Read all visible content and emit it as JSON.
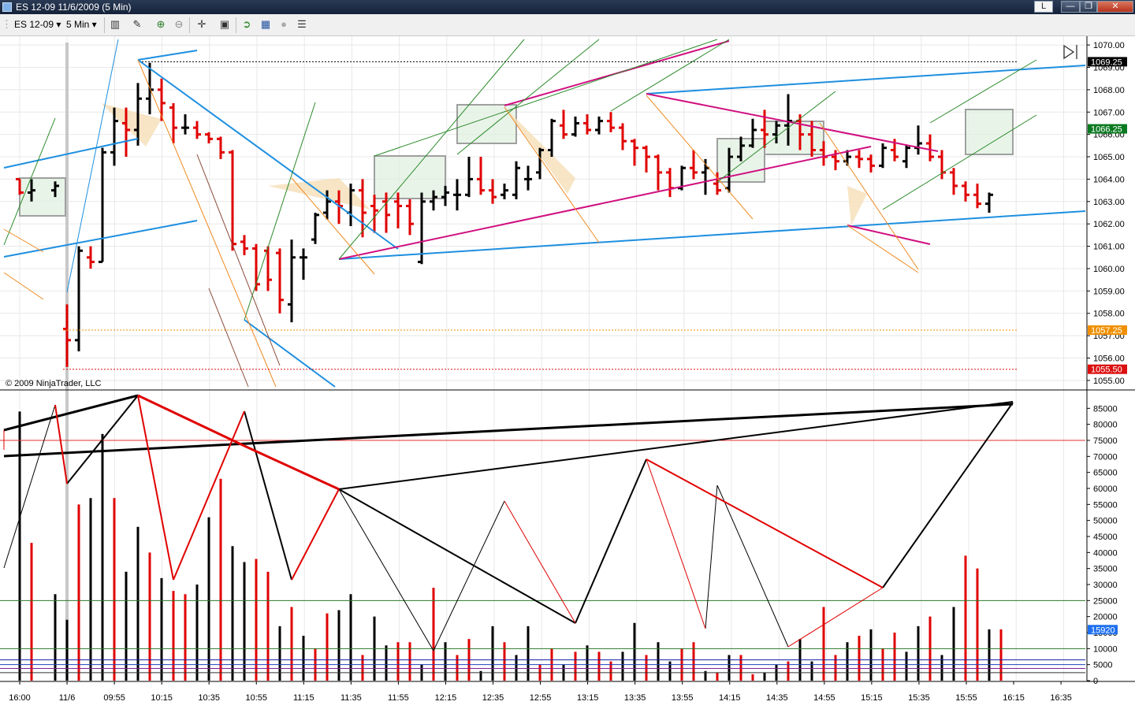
{
  "window": {
    "title": "ES 12-09  11/6/2009 (5 Min)",
    "language_indicator": "L",
    "minimize_glyph": "—",
    "restore_glyph": "❐",
    "close_glyph": "✕"
  },
  "toolbar": {
    "instrument": "ES 12-09",
    "interval": "5 Min",
    "icons": [
      "bars-type-icon",
      "pencil-draw-icon",
      "zoom-in-icon",
      "zoom-out-icon",
      "crosshair-icon",
      "properties-icon",
      "strategy-icon",
      "indicator-icon",
      "sound-icon",
      "data-box-icon"
    ]
  },
  "colors": {
    "up_bar": "#000000",
    "down_bar": "#e00000",
    "pivot_line": "#d01080",
    "trend_blue": "#1e8fe0",
    "channel_green": "#2a8a2a",
    "channel_orange": "#f08a20",
    "grid": "#e8e8e8"
  },
  "copyright": "© 2009 NinjaTrader, LLC",
  "chart_data": [
    {
      "type": "bar",
      "panel": "price",
      "description_series": "OHLC 5-minute bars",
      "ylim": [
        1054.75,
        1070.25
      ],
      "yticks": [
        "1070.00",
        "1069.00",
        "1068.00",
        "1067.00",
        "1066.00",
        "1065.00",
        "1064.00",
        "1063.00",
        "1062.00",
        "1061.00",
        "1060.00",
        "1059.00",
        "1058.00",
        "1057.00",
        "1056.00",
        "1055.00"
      ],
      "markers": [
        {
          "label": "1069.25",
          "value": 1069.25,
          "color": "#000000"
        },
        {
          "label": "1066.25",
          "value": 1066.25,
          "color": "#0a7a20"
        },
        {
          "label": "1057.25",
          "value": 1057.25,
          "color": "#f09000"
        },
        {
          "label": "1055.50",
          "value": 1055.5,
          "color": "#dd1010"
        }
      ],
      "bars": [
        {
          "t": "15:55",
          "o": 1064.0,
          "h": 1064.0,
          "c": 1063.4,
          "l": 1063.3
        },
        {
          "t": "16:05",
          "o": 1063.4,
          "h": 1064.0,
          "c": 1063.5,
          "l": 1063.0
        },
        {
          "t": "16:10",
          "o": 1063.5,
          "h": 1063.9,
          "c": 1063.7,
          "l": 1063.2
        },
        {
          "t": "09:30",
          "o": 1057.3,
          "h": 1058.4,
          "c": 1056.8,
          "l": 1055.6
        },
        {
          "t": "09:35",
          "o": 1056.8,
          "h": 1061.0,
          "c": 1060.8,
          "l": 1056.3
        },
        {
          "t": "09:40",
          "o": 1060.5,
          "h": 1061.0,
          "c": 1060.3,
          "l": 1060.0
        },
        {
          "t": "09:45",
          "o": 1060.3,
          "h": 1065.4,
          "c": 1065.2,
          "l": 1060.3
        },
        {
          "t": "09:50",
          "o": 1065.2,
          "h": 1067.2,
          "c": 1066.6,
          "l": 1064.6
        },
        {
          "t": "09:55",
          "o": 1066.5,
          "h": 1067.2,
          "c": 1066.2,
          "l": 1065.0
        },
        {
          "t": "10:00",
          "o": 1066.2,
          "h": 1068.3,
          "c": 1067.6,
          "l": 1065.5
        },
        {
          "t": "10:05",
          "o": 1067.6,
          "h": 1069.2,
          "c": 1068.0,
          "l": 1066.9
        },
        {
          "t": "10:10",
          "o": 1068.0,
          "h": 1068.5,
          "c": 1067.4,
          "l": 1066.6
        },
        {
          "t": "10:15",
          "o": 1067.2,
          "h": 1067.4,
          "c": 1066.3,
          "l": 1065.6
        },
        {
          "t": "10:20",
          "o": 1066.3,
          "h": 1066.9,
          "c": 1066.3,
          "l": 1066.0
        },
        {
          "t": "10:25",
          "o": 1066.3,
          "h": 1066.6,
          "c": 1066.0,
          "l": 1065.8
        },
        {
          "t": "10:30",
          "o": 1066.0,
          "h": 1066.1,
          "c": 1065.8,
          "l": 1065.6
        },
        {
          "t": "10:35",
          "o": 1065.8,
          "h": 1065.9,
          "c": 1065.2,
          "l": 1064.9
        },
        {
          "t": "10:40",
          "o": 1065.2,
          "h": 1065.3,
          "c": 1061.1,
          "l": 1060.8
        },
        {
          "t": "10:45",
          "o": 1061.2,
          "h": 1061.5,
          "c": 1060.9,
          "l": 1060.6
        },
        {
          "t": "10:50",
          "o": 1060.9,
          "h": 1061.1,
          "c": 1059.3,
          "l": 1059.0
        },
        {
          "t": "10:55",
          "o": 1060.8,
          "h": 1061.0,
          "c": 1059.5,
          "l": 1059.0
        },
        {
          "t": "11:00",
          "o": 1060.7,
          "h": 1060.9,
          "c": 1058.6,
          "l": 1058.0
        },
        {
          "t": "11:05",
          "o": 1058.4,
          "h": 1061.3,
          "c": 1060.5,
          "l": 1057.6
        },
        {
          "t": "11:10",
          "o": 1060.5,
          "h": 1060.9,
          "c": 1060.5,
          "l": 1059.5
        },
        {
          "t": "11:15",
          "o": 1061.3,
          "h": 1062.5,
          "c": 1062.4,
          "l": 1061.1
        },
        {
          "t": "11:20",
          "o": 1062.5,
          "h": 1063.5,
          "c": 1063.0,
          "l": 1062.2
        },
        {
          "t": "11:25",
          "o": 1063.0,
          "h": 1063.5,
          "c": 1062.8,
          "l": 1062.0
        },
        {
          "t": "11:30",
          "o": 1062.5,
          "h": 1063.8,
          "c": 1063.5,
          "l": 1061.9
        },
        {
          "t": "11:35",
          "o": 1063.5,
          "h": 1064.0,
          "c": 1062.5,
          "l": 1061.4
        },
        {
          "t": "11:40",
          "o": 1062.8,
          "h": 1063.3,
          "c": 1062.6,
          "l": 1061.6
        },
        {
          "t": "11:45",
          "o": 1063.0,
          "h": 1063.4,
          "c": 1062.4,
          "l": 1061.6
        },
        {
          "t": "11:50",
          "o": 1063.0,
          "h": 1063.4,
          "c": 1062.8,
          "l": 1061.8
        },
        {
          "t": "11:55",
          "o": 1062.8,
          "h": 1063.1,
          "c": 1062.0,
          "l": 1061.5
        },
        {
          "t": "12:00",
          "o": 1060.3,
          "h": 1063.4,
          "c": 1063.0,
          "l": 1060.2
        },
        {
          "t": "12:05",
          "o": 1063.0,
          "h": 1063.5,
          "c": 1063.2,
          "l": 1062.6
        },
        {
          "t": "12:10",
          "o": 1063.2,
          "h": 1063.7,
          "c": 1063.4,
          "l": 1062.8
        },
        {
          "t": "12:15",
          "o": 1063.3,
          "h": 1064.0,
          "c": 1063.3,
          "l": 1062.6
        },
        {
          "t": "12:20",
          "o": 1063.3,
          "h": 1065.0,
          "c": 1064.0,
          "l": 1063.2
        },
        {
          "t": "12:25",
          "o": 1064.0,
          "h": 1065.0,
          "c": 1063.5,
          "l": 1063.3
        },
        {
          "t": "12:30",
          "o": 1063.5,
          "h": 1064.0,
          "c": 1063.2,
          "l": 1062.9
        },
        {
          "t": "12:35",
          "o": 1063.3,
          "h": 1063.8,
          "c": 1063.5,
          "l": 1063.1
        },
        {
          "t": "12:40",
          "o": 1063.3,
          "h": 1064.8,
          "c": 1064.5,
          "l": 1063.1
        },
        {
          "t": "12:45",
          "o": 1064.0,
          "h": 1064.6,
          "c": 1064.0,
          "l": 1063.5
        },
        {
          "t": "12:50",
          "o": 1064.3,
          "h": 1065.4,
          "c": 1065.3,
          "l": 1064.0
        },
        {
          "t": "12:55",
          "o": 1065.3,
          "h": 1066.7,
          "c": 1066.6,
          "l": 1065.0
        },
        {
          "t": "13:00",
          "o": 1066.4,
          "h": 1067.1,
          "c": 1066.0,
          "l": 1065.8
        },
        {
          "t": "13:05",
          "o": 1066.0,
          "h": 1066.8,
          "c": 1066.5,
          "l": 1065.9
        },
        {
          "t": "13:10",
          "o": 1066.5,
          "h": 1066.9,
          "c": 1066.2,
          "l": 1066.0
        },
        {
          "t": "13:15",
          "o": 1066.2,
          "h": 1066.8,
          "c": 1066.6,
          "l": 1066.0
        },
        {
          "t": "13:20",
          "o": 1066.6,
          "h": 1067.0,
          "c": 1066.3,
          "l": 1066.1
        },
        {
          "t": "13:25",
          "o": 1066.3,
          "h": 1066.5,
          "c": 1065.7,
          "l": 1065.3
        },
        {
          "t": "13:30",
          "o": 1065.7,
          "h": 1065.8,
          "c": 1065.4,
          "l": 1064.6
        },
        {
          "t": "13:35",
          "o": 1065.4,
          "h": 1065.5,
          "c": 1065.0,
          "l": 1064.3
        },
        {
          "t": "13:40",
          "o": 1065.0,
          "h": 1065.1,
          "c": 1064.3,
          "l": 1063.5
        },
        {
          "t": "13:45",
          "o": 1064.3,
          "h": 1064.5,
          "c": 1063.6,
          "l": 1063.2
        },
        {
          "t": "13:50",
          "o": 1063.6,
          "h": 1064.6,
          "c": 1064.5,
          "l": 1063.5
        },
        {
          "t": "13:55",
          "o": 1064.5,
          "h": 1065.3,
          "c": 1064.3,
          "l": 1064.0
        },
        {
          "t": "14:00",
          "o": 1064.3,
          "h": 1064.9,
          "c": 1064.5,
          "l": 1063.3
        },
        {
          "t": "14:05",
          "o": 1063.8,
          "h": 1064.3,
          "c": 1063.5,
          "l": 1063.3
        },
        {
          "t": "14:10",
          "o": 1063.6,
          "h": 1065.4,
          "c": 1065.0,
          "l": 1063.4
        },
        {
          "t": "14:15",
          "o": 1065.0,
          "h": 1065.9,
          "c": 1065.5,
          "l": 1064.8
        },
        {
          "t": "14:20",
          "o": 1065.5,
          "h": 1066.7,
          "c": 1066.2,
          "l": 1065.4
        },
        {
          "t": "14:25",
          "o": 1066.2,
          "h": 1067.1,
          "c": 1066.0,
          "l": 1065.4
        },
        {
          "t": "14:30",
          "o": 1066.0,
          "h": 1066.6,
          "c": 1066.4,
          "l": 1065.6
        },
        {
          "t": "14:35",
          "o": 1066.4,
          "h": 1067.8,
          "c": 1066.6,
          "l": 1065.5
        },
        {
          "t": "14:40",
          "o": 1066.6,
          "h": 1066.9,
          "c": 1066.0,
          "l": 1065.3
        },
        {
          "t": "14:45",
          "o": 1066.0,
          "h": 1066.6,
          "c": 1065.3,
          "l": 1065.0
        },
        {
          "t": "14:50",
          "o": 1065.3,
          "h": 1065.7,
          "c": 1065.0,
          "l": 1064.6
        },
        {
          "t": "14:55",
          "o": 1065.0,
          "h": 1065.3,
          "c": 1064.8,
          "l": 1064.4
        },
        {
          "t": "15:00",
          "o": 1064.8,
          "h": 1065.3,
          "c": 1065.0,
          "l": 1064.6
        },
        {
          "t": "15:05",
          "o": 1065.0,
          "h": 1065.3,
          "c": 1064.9,
          "l": 1064.5
        },
        {
          "t": "15:10",
          "o": 1064.9,
          "h": 1065.1,
          "c": 1064.6,
          "l": 1064.3
        },
        {
          "t": "15:15",
          "o": 1064.6,
          "h": 1065.6,
          "c": 1065.4,
          "l": 1064.5
        },
        {
          "t": "15:20",
          "o": 1065.3,
          "h": 1065.8,
          "c": 1065.0,
          "l": 1064.8
        },
        {
          "t": "15:25",
          "o": 1064.8,
          "h": 1065.5,
          "c": 1065.4,
          "l": 1064.5
        },
        {
          "t": "15:30",
          "o": 1065.4,
          "h": 1066.4,
          "c": 1065.6,
          "l": 1065.1
        },
        {
          "t": "15:35",
          "o": 1065.6,
          "h": 1066.0,
          "c": 1065.0,
          "l": 1064.8
        },
        {
          "t": "15:40",
          "o": 1065.0,
          "h": 1065.3,
          "c": 1064.3,
          "l": 1064.0
        },
        {
          "t": "15:45",
          "o": 1064.3,
          "h": 1064.5,
          "c": 1063.7,
          "l": 1063.3
        },
        {
          "t": "15:50",
          "o": 1063.7,
          "h": 1063.9,
          "c": 1063.3,
          "l": 1063.0
        },
        {
          "t": "15:55",
          "o": 1063.3,
          "h": 1063.8,
          "c": 1062.9,
          "l": 1062.7
        },
        {
          "t": "16:00",
          "o": 1062.9,
          "h": 1063.4,
          "c": 1063.3,
          "l": 1062.5
        }
      ]
    },
    {
      "type": "bar",
      "panel": "volume",
      "ylim": [
        0,
        90000
      ],
      "yticks": [
        "85000",
        "80000",
        "75000",
        "70000",
        "65000",
        "60000",
        "55000",
        "50000",
        "45000",
        "40000",
        "35000",
        "30000",
        "25000",
        "20000",
        "15000",
        "10000",
        "5000",
        "0"
      ],
      "last_value_label": "15920",
      "reference_lines": [
        75000,
        25000,
        10000
      ],
      "x_tick_labels": [
        "16:00",
        "11/6",
        "09:55",
        "10:15",
        "10:35",
        "10:55",
        "11:15",
        "11:35",
        "11:55",
        "12:15",
        "12:35",
        "12:55",
        "13:15",
        "13:35",
        "13:55",
        "14:15",
        "14:35",
        "14:55",
        "15:15",
        "15:35",
        "15:55",
        "16:15",
        "16:35"
      ]
    }
  ]
}
